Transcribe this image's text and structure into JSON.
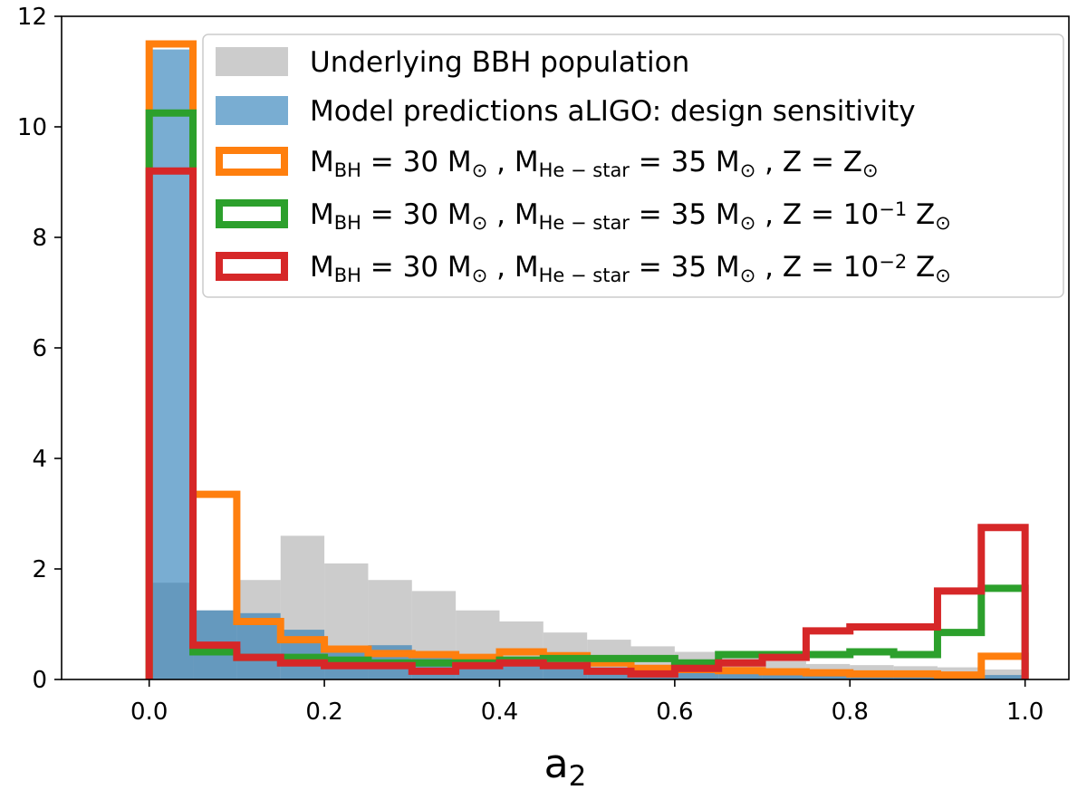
{
  "chart_data": {
    "type": "bar",
    "xlabel": "a",
    "xlabel_sub": "2",
    "ylabel": "",
    "title": "",
    "xlim": [
      -0.1,
      1.05
    ],
    "ylim": [
      0,
      12
    ],
    "xticks": [
      0.0,
      0.2,
      0.4,
      0.6,
      0.8,
      1.0
    ],
    "xtick_labels": [
      "0.0",
      "0.2",
      "0.4",
      "0.6",
      "0.8",
      "1.0"
    ],
    "yticks": [
      0,
      2,
      4,
      6,
      8,
      10,
      12
    ],
    "ytick_labels": [
      "0",
      "2",
      "4",
      "6",
      "8",
      "10",
      "12"
    ],
    "bin_edges": [
      0.0,
      0.05,
      0.1,
      0.15,
      0.2,
      0.25,
      0.3,
      0.35,
      0.4,
      0.45,
      0.5,
      0.55,
      0.6,
      0.65,
      0.7,
      0.75,
      0.8,
      0.85,
      0.9,
      0.95,
      1.0
    ],
    "legend_position": "upper right",
    "series": [
      {
        "name": "Underlying BBH population",
        "style": "filled",
        "color": "#bfbfbf",
        "opacity": 0.8,
        "values": [
          1.75,
          1.25,
          1.8,
          2.6,
          2.1,
          1.8,
          1.6,
          1.25,
          1.05,
          0.85,
          0.72,
          0.6,
          0.5,
          0.4,
          0.33,
          0.28,
          0.26,
          0.24,
          0.22,
          0.18
        ]
      },
      {
        "name": "Model predictions aLIGO: design sensitivity",
        "style": "filled",
        "color": "#1f77b4",
        "opacity": 0.6,
        "values": [
          11.4,
          1.25,
          1.2,
          0.9,
          0.6,
          0.62,
          0.42,
          0.36,
          0.3,
          0.26,
          0.22,
          0.18,
          0.16,
          0.15,
          0.13,
          0.12,
          0.11,
          0.1,
          0.09,
          0.08
        ]
      },
      {
        "name": "Z = Z⊙",
        "style": "step",
        "color": "#ff7f0e",
        "values": [
          11.5,
          3.35,
          1.05,
          0.72,
          0.55,
          0.47,
          0.45,
          0.4,
          0.5,
          0.43,
          0.3,
          0.2,
          0.18,
          0.16,
          0.14,
          0.12,
          0.1,
          0.1,
          0.08,
          0.42
        ]
      },
      {
        "name": "Z = 10^-1 Z⊙",
        "style": "step",
        "color": "#2ca02c",
        "values": [
          10.25,
          0.5,
          0.4,
          0.4,
          0.35,
          0.3,
          0.3,
          0.3,
          0.35,
          0.38,
          0.38,
          0.38,
          0.3,
          0.45,
          0.45,
          0.45,
          0.5,
          0.45,
          0.85,
          1.65
        ]
      },
      {
        "name": "Z = 10^-2 Z⊙",
        "style": "step",
        "color": "#d62728",
        "values": [
          9.2,
          0.62,
          0.4,
          0.3,
          0.25,
          0.25,
          0.15,
          0.25,
          0.3,
          0.25,
          0.15,
          0.1,
          0.2,
          0.3,
          0.4,
          0.88,
          0.95,
          0.95,
          1.6,
          2.75
        ]
      }
    ],
    "legend": [
      {
        "kind": "filled",
        "color": "#bfbfbf",
        "parts": [
          {
            "t": "Underlying BBH population"
          }
        ]
      },
      {
        "kind": "filled",
        "color": "#1f77b4",
        "parts": [
          {
            "t": "Model predictions aLIGO: design sensitivity"
          }
        ]
      },
      {
        "kind": "step",
        "color": "#ff7f0e",
        "parts": [
          {
            "t": "M"
          },
          {
            "t": "BH",
            "sub": true
          },
          {
            "t": " = 30 M"
          },
          {
            "t": "⊙",
            "sub": true
          },
          {
            "t": " , M"
          },
          {
            "t": "He − star",
            "sub": true
          },
          {
            "t": " = 35 M"
          },
          {
            "t": "⊙",
            "sub": true
          },
          {
            "t": " , Z = Z"
          },
          {
            "t": "⊙",
            "sub": true
          }
        ]
      },
      {
        "kind": "step",
        "color": "#2ca02c",
        "parts": [
          {
            "t": "M"
          },
          {
            "t": "BH",
            "sub": true
          },
          {
            "t": " = 30 M"
          },
          {
            "t": "⊙",
            "sub": true
          },
          {
            "t": " , M"
          },
          {
            "t": "He − star",
            "sub": true
          },
          {
            "t": " = 35 M"
          },
          {
            "t": "⊙",
            "sub": true
          },
          {
            "t": " , Z = 10"
          },
          {
            "t": "−1",
            "sup": true
          },
          {
            "t": " Z"
          },
          {
            "t": "⊙",
            "sub": true
          }
        ]
      },
      {
        "kind": "step",
        "color": "#d62728",
        "parts": [
          {
            "t": "M"
          },
          {
            "t": "BH",
            "sub": true
          },
          {
            "t": " = 30 M"
          },
          {
            "t": "⊙",
            "sub": true
          },
          {
            "t": " , M"
          },
          {
            "t": "He − star",
            "sub": true
          },
          {
            "t": " = 35 M"
          },
          {
            "t": "⊙",
            "sub": true
          },
          {
            "t": " , Z = 10"
          },
          {
            "t": "−2",
            "sup": true
          },
          {
            "t": " Z"
          },
          {
            "t": "⊙",
            "sub": true
          }
        ]
      }
    ]
  }
}
